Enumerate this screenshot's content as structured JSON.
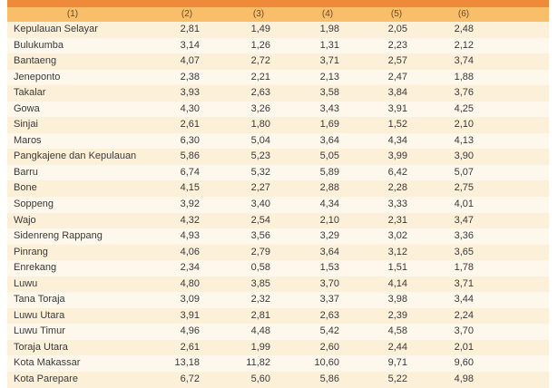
{
  "colors": {
    "title_band": "#ef8a3a",
    "header": "#f9be6a",
    "row_odd": "#fdf0d9",
    "row_even": "#fef8ec"
  },
  "headers": [
    "(1)",
    "(2)",
    "(3)",
    "(4)",
    "(5)",
    "(6)"
  ],
  "rows": [
    [
      "Kepulauan Selayar",
      "2,81",
      "1,49",
      "1,98",
      "2,05",
      "2,48"
    ],
    [
      "Bulukumba",
      "3,14",
      "1,26",
      "1,31",
      "2,23",
      "2,12"
    ],
    [
      "Bantaeng",
      "4,07",
      "2,72",
      "3,71",
      "2,57",
      "3,74"
    ],
    [
      "Jeneponto",
      "2,38",
      "2,21",
      "2,13",
      "2,47",
      "1,88"
    ],
    [
      "Takalar",
      "3,93",
      "2,63",
      "3,58",
      "3,84",
      "3,76"
    ],
    [
      "Gowa",
      "4,30",
      "3,26",
      "3,43",
      "3,91",
      "4,25"
    ],
    [
      "Sinjai",
      "2,61",
      "1,80",
      "1,69",
      "1,52",
      "2,10"
    ],
    [
      "Maros",
      "6,30",
      "5,04",
      "3,64",
      "4,34",
      "4,13"
    ],
    [
      "Pangkajene dan Kepulauan",
      "5,86",
      "5,23",
      "5,05",
      "3,99",
      "3,90"
    ],
    [
      "Barru",
      "6,74",
      "5,32",
      "5,89",
      "6,42",
      "5,07"
    ],
    [
      "Bone",
      "4,15",
      "2,27",
      "2,88",
      "2,28",
      "2,75"
    ],
    [
      "Soppeng",
      "3,92",
      "3,40",
      "4,34",
      "3,33",
      "4,01"
    ],
    [
      "Wajo",
      "4,32",
      "2,54",
      "2,10",
      "2,31",
      "3,47"
    ],
    [
      "Sidenreng Rappang",
      "4,93",
      "3,56",
      "3,29",
      "3,02",
      "3,36"
    ],
    [
      "Pinrang",
      "4,06",
      "2,79",
      "3,64",
      "3,12",
      "3,65"
    ],
    [
      "Enrekang",
      "2,34",
      "0,58",
      "1,53",
      "1,51",
      "1,78"
    ],
    [
      "Luwu",
      "4,80",
      "3,85",
      "3,70",
      "4,14",
      "3,71"
    ],
    [
      "Tana Toraja",
      "3,09",
      "2,32",
      "3,37",
      "3,98",
      "3,44"
    ],
    [
      "Luwu Utara",
      "3,91",
      "2,81",
      "2,63",
      "2,39",
      "2,24"
    ],
    [
      "Luwu Timur",
      "4,96",
      "4,48",
      "5,42",
      "4,58",
      "3,70"
    ],
    [
      "Toraja Utara",
      "2,61",
      "1,99",
      "2,60",
      "2,44",
      "2,01"
    ],
    [
      "Kota Makassar",
      "13,18",
      "11,82",
      "10,60",
      "9,71",
      "9,60"
    ],
    [
      "Kota Parepare",
      "6,72",
      "5,60",
      "5,86",
      "5,22",
      "4,98"
    ]
  ]
}
